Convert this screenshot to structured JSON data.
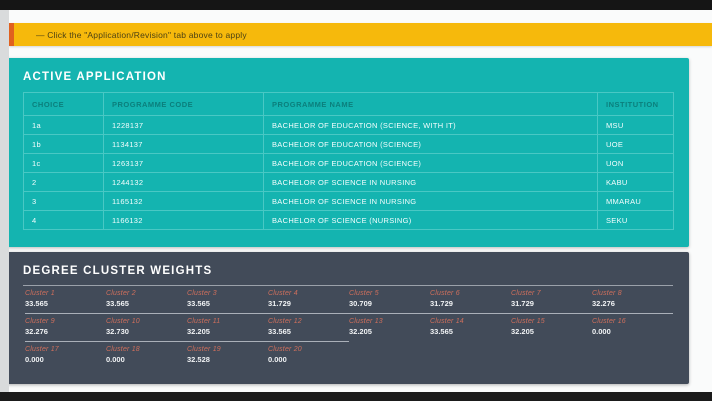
{
  "banner": {
    "text": "— Click the \"Application/Revision\" tab above to apply"
  },
  "active_application": {
    "title": "ACTIVE APPLICATION",
    "columns": {
      "choice": "CHOICE",
      "code": "PROGRAMME CODE",
      "name": "PROGRAMME NAME",
      "institution": "INSTITUTION"
    },
    "rows": [
      {
        "choice": "1a",
        "code": "1228137",
        "name": "BACHELOR OF EDUCATION (SCIENCE, WITH IT)",
        "institution": "MSU"
      },
      {
        "choice": "1b",
        "code": "1134137",
        "name": "BACHELOR OF EDUCATION (SCIENCE)",
        "institution": "UOE"
      },
      {
        "choice": "1c",
        "code": "1263137",
        "name": "BACHELOR OF EDUCATION (SCIENCE)",
        "institution": "UON"
      },
      {
        "choice": "2",
        "code": "1244132",
        "name": "BACHELOR OF SCIENCE IN NURSING",
        "institution": "KABU"
      },
      {
        "choice": "3",
        "code": "1165132",
        "name": "BACHELOR OF SCIENCE IN NURSING",
        "institution": "MMARAU"
      },
      {
        "choice": "4",
        "code": "1166132",
        "name": "BACHELOR OF SCIENCE (NURSING)",
        "institution": "SEKU"
      }
    ]
  },
  "cluster_weights": {
    "title": "DEGREE CLUSTER WEIGHTS",
    "clusters": [
      {
        "label": "Cluster 1",
        "value": "33.565"
      },
      {
        "label": "Cluster 2",
        "value": "33.565"
      },
      {
        "label": "Cluster 3",
        "value": "33.565"
      },
      {
        "label": "Cluster 4",
        "value": "31.729"
      },
      {
        "label": "Cluster 5",
        "value": "30.709"
      },
      {
        "label": "Cluster 6",
        "value": "31.729"
      },
      {
        "label": "Cluster 7",
        "value": "31.729"
      },
      {
        "label": "Cluster 8",
        "value": "32.276"
      },
      {
        "label": "Cluster 9",
        "value": "32.276"
      },
      {
        "label": "Cluster 10",
        "value": "32.730"
      },
      {
        "label": "Cluster 11",
        "value": "32.205"
      },
      {
        "label": "Cluster 12",
        "value": "33.565"
      },
      {
        "label": "Cluster 13",
        "value": "32.205"
      },
      {
        "label": "Cluster 14",
        "value": "33.565"
      },
      {
        "label": "Cluster 15",
        "value": "32.205"
      },
      {
        "label": "Cluster 16",
        "value": "0.000"
      },
      {
        "label": "Cluster 17",
        "value": "0.000"
      },
      {
        "label": "Cluster 18",
        "value": "0.000"
      },
      {
        "label": "Cluster 19",
        "value": "32.528"
      },
      {
        "label": "Cluster 20",
        "value": "0.000"
      }
    ]
  },
  "colors": {
    "teal_card": "#14b4b0",
    "teal_border": "#49c8c4",
    "teal_header_text": "#0b7f7c",
    "banner_bg": "#f6b90c",
    "banner_border": "#e0611f",
    "slate_card": "#424b59",
    "cluster_label": "#cf6f5c",
    "frame_bar": "#151515"
  }
}
